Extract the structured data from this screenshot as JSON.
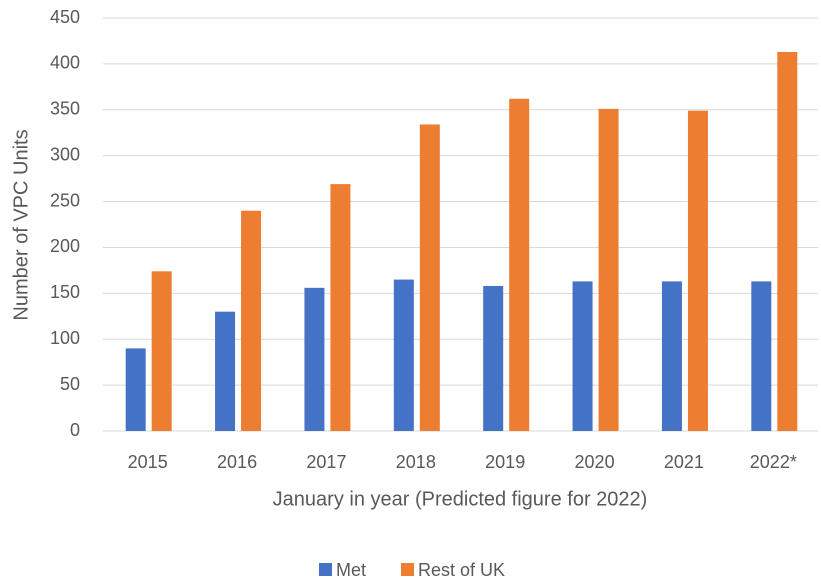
{
  "chart_data": {
    "type": "bar",
    "x_label": "January in year (Predicted figure for 2022)",
    "y_label": "Number of VPC Units",
    "categories": [
      "2015",
      "2016",
      "2017",
      "2018",
      "2019",
      "2020",
      "2021",
      "2022*"
    ],
    "series": [
      {
        "name": "Met",
        "color": "#4472c4",
        "values": [
          90,
          130,
          156,
          165,
          158,
          163,
          163,
          163
        ]
      },
      {
        "name": "Rest of UK",
        "color": "#ed7d31",
        "values": [
          174,
          240,
          269,
          334,
          362,
          351,
          349,
          413
        ]
      }
    ],
    "ylim": [
      0,
      450
    ],
    "yticks": [
      0,
      50,
      100,
      150,
      200,
      250,
      300,
      350,
      400,
      450
    ],
    "grid": true,
    "legend": "bottom"
  }
}
